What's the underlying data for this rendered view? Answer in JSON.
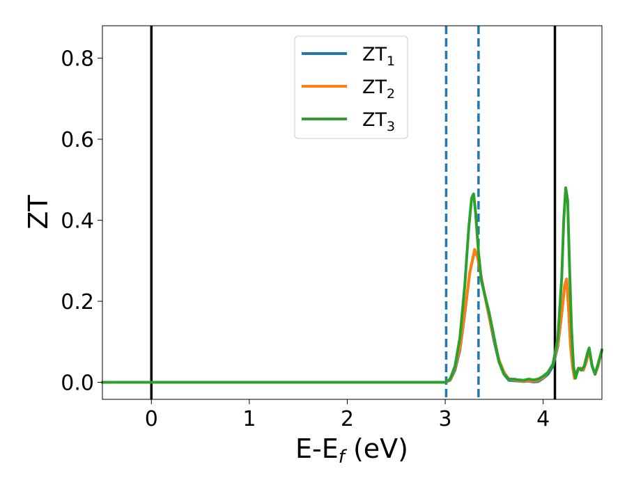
{
  "chart_data": {
    "type": "line",
    "xlabel": "E-E",
    "xlabel_sub": "f",
    "xlabel_unit": " (eV)",
    "ylabel": "ZT",
    "xlim": [
      -0.5,
      4.6
    ],
    "ylim": [
      -0.042,
      0.88
    ],
    "x_ticks": [
      0,
      1,
      2,
      3,
      4
    ],
    "y_ticks": [
      0.0,
      0.2,
      0.4,
      0.6,
      0.8
    ],
    "x_tick_labels": [
      "0",
      "1",
      "2",
      "3",
      "4"
    ],
    "y_tick_labels": [
      "0.0",
      "0.2",
      "0.4",
      "0.6",
      "0.8"
    ],
    "grid": false,
    "legend_position": "top-center",
    "vlines_solid": [
      0,
      4.12
    ],
    "vlines_dashed": [
      3.01,
      3.34
    ],
    "series": [
      {
        "name": "ZT",
        "sub": "1",
        "color": "#1f77b4",
        "points": [
          [
            -0.5,
            0
          ],
          [
            2.9,
            0
          ],
          [
            3.0,
            0.0
          ],
          [
            3.05,
            0.005
          ],
          [
            3.1,
            0.03
          ],
          [
            3.15,
            0.08
          ],
          [
            3.2,
            0.17
          ],
          [
            3.25,
            0.27
          ],
          [
            3.3,
            0.325
          ],
          [
            3.33,
            0.31
          ],
          [
            3.36,
            0.27
          ],
          [
            3.4,
            0.22
          ],
          [
            3.45,
            0.16
          ],
          [
            3.5,
            0.1
          ],
          [
            3.55,
            0.05
          ],
          [
            3.6,
            0.02
          ],
          [
            3.65,
            0.005
          ],
          [
            3.7,
            0.004
          ],
          [
            3.75,
            0.003
          ],
          [
            3.8,
            0.002
          ],
          [
            3.85,
            0.003
          ],
          [
            3.9,
            0.001
          ],
          [
            3.95,
            0.002
          ],
          [
            4.0,
            0.01
          ],
          [
            4.05,
            0.02
          ],
          [
            4.1,
            0.04
          ],
          [
            4.15,
            0.09
          ],
          [
            4.19,
            0.17
          ],
          [
            4.22,
            0.24
          ],
          [
            4.24,
            0.255
          ],
          [
            4.26,
            0.18
          ],
          [
            4.28,
            0.09
          ],
          [
            4.3,
            0.04
          ],
          [
            4.32,
            0.01
          ],
          [
            4.35,
            0.03
          ],
          [
            4.38,
            0.035
          ],
          [
            4.41,
            0.03
          ],
          [
            4.44,
            0.05
          ],
          [
            4.47,
            0.08
          ],
          [
            4.5,
            0.04
          ],
          [
            4.53,
            0.02
          ],
          [
            4.56,
            0.04
          ],
          [
            4.6,
            0.08
          ]
        ]
      },
      {
        "name": "ZT",
        "sub": "2",
        "color": "#ff7f0e",
        "points": [
          [
            -0.5,
            0
          ],
          [
            2.9,
            0
          ],
          [
            3.0,
            0.0
          ],
          [
            3.05,
            0.006
          ],
          [
            3.1,
            0.035
          ],
          [
            3.15,
            0.085
          ],
          [
            3.2,
            0.175
          ],
          [
            3.25,
            0.27
          ],
          [
            3.3,
            0.328
          ],
          [
            3.33,
            0.31
          ],
          [
            3.36,
            0.27
          ],
          [
            3.4,
            0.22
          ],
          [
            3.45,
            0.16
          ],
          [
            3.5,
            0.105
          ],
          [
            3.55,
            0.055
          ],
          [
            3.6,
            0.025
          ],
          [
            3.65,
            0.008
          ],
          [
            3.7,
            0.006
          ],
          [
            3.75,
            0.004
          ],
          [
            3.8,
            0.003
          ],
          [
            3.85,
            0.004
          ],
          [
            3.9,
            0.003
          ],
          [
            3.95,
            0.005
          ],
          [
            4.0,
            0.012
          ],
          [
            4.05,
            0.025
          ],
          [
            4.1,
            0.045
          ],
          [
            4.15,
            0.095
          ],
          [
            4.19,
            0.17
          ],
          [
            4.22,
            0.24
          ],
          [
            4.24,
            0.255
          ],
          [
            4.26,
            0.18
          ],
          [
            4.28,
            0.09
          ],
          [
            4.3,
            0.04
          ],
          [
            4.32,
            0.01
          ],
          [
            4.35,
            0.03
          ],
          [
            4.38,
            0.035
          ],
          [
            4.41,
            0.03
          ],
          [
            4.44,
            0.05
          ],
          [
            4.47,
            0.08
          ],
          [
            4.5,
            0.04
          ],
          [
            4.53,
            0.02
          ],
          [
            4.56,
            0.04
          ],
          [
            4.6,
            0.08
          ]
        ]
      },
      {
        "name": "ZT",
        "sub": "3",
        "color": "#2ca02c",
        "points": [
          [
            -0.5,
            0
          ],
          [
            2.9,
            0
          ],
          [
            3.0,
            0.0
          ],
          [
            3.05,
            0.008
          ],
          [
            3.1,
            0.04
          ],
          [
            3.15,
            0.11
          ],
          [
            3.2,
            0.24
          ],
          [
            3.24,
            0.38
          ],
          [
            3.27,
            0.455
          ],
          [
            3.29,
            0.465
          ],
          [
            3.31,
            0.42
          ],
          [
            3.34,
            0.32
          ],
          [
            3.37,
            0.25
          ],
          [
            3.4,
            0.22
          ],
          [
            3.45,
            0.17
          ],
          [
            3.5,
            0.11
          ],
          [
            3.55,
            0.05
          ],
          [
            3.6,
            0.02
          ],
          [
            3.65,
            0.008
          ],
          [
            3.7,
            0.008
          ],
          [
            3.75,
            0.006
          ],
          [
            3.8,
            0.005
          ],
          [
            3.85,
            0.008
          ],
          [
            3.9,
            0.006
          ],
          [
            3.95,
            0.008
          ],
          [
            4.0,
            0.015
          ],
          [
            4.05,
            0.025
          ],
          [
            4.1,
            0.045
          ],
          [
            4.15,
            0.11
          ],
          [
            4.19,
            0.26
          ],
          [
            4.21,
            0.4
          ],
          [
            4.23,
            0.48
          ],
          [
            4.25,
            0.45
          ],
          [
            4.27,
            0.28
          ],
          [
            4.29,
            0.13
          ],
          [
            4.31,
            0.04
          ],
          [
            4.33,
            0.01
          ],
          [
            4.36,
            0.035
          ],
          [
            4.39,
            0.03
          ],
          [
            4.42,
            0.04
          ],
          [
            4.45,
            0.07
          ],
          [
            4.47,
            0.085
          ],
          [
            4.5,
            0.04
          ],
          [
            4.53,
            0.02
          ],
          [
            4.56,
            0.045
          ],
          [
            4.6,
            0.08
          ]
        ]
      }
    ]
  }
}
